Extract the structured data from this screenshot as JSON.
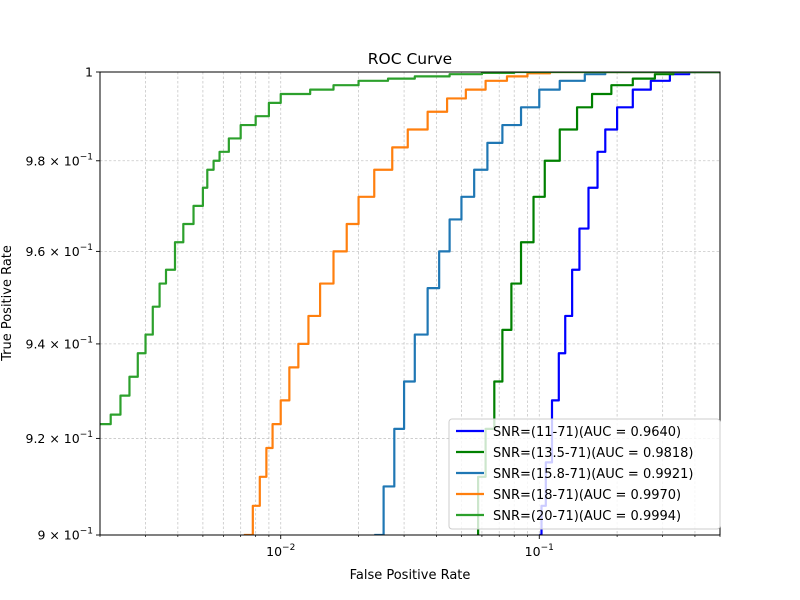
{
  "chart_data": {
    "type": "line",
    "title": "ROC Curve",
    "xlabel": "False Positive Rate",
    "ylabel": "True Positive Rate",
    "xscale": "log",
    "yscale": "log",
    "xlim": [
      0.002,
      0.5
    ],
    "ylim": [
      0.9,
      1.0
    ],
    "grid": true,
    "legend_position": "bottom-right",
    "x_ticks": [
      {
        "value": 0.01,
        "base": "10",
        "exp": "−2"
      },
      {
        "value": 0.1,
        "base": "10",
        "exp": "−1"
      }
    ],
    "y_ticks": [
      {
        "value": 0.9,
        "text": "9 × 10",
        "exp": "−1"
      },
      {
        "value": 0.92,
        "text": "9.2 × 10",
        "exp": "−1"
      },
      {
        "value": 0.94,
        "text": "9.4 × 10",
        "exp": "−1"
      },
      {
        "value": 0.96,
        "text": "9.6 × 10",
        "exp": "−1"
      },
      {
        "value": 0.98,
        "text": "9.8 × 10",
        "exp": "−1"
      },
      {
        "value": 1.0,
        "text": "1",
        "exp": "0"
      }
    ],
    "series": [
      {
        "name": "SNR=(11-71)(AUC = 0.9640)",
        "color": "#0000ff",
        "points": [
          [
            0.1,
            0.9
          ],
          [
            0.102,
            0.906
          ],
          [
            0.106,
            0.915
          ],
          [
            0.112,
            0.928
          ],
          [
            0.119,
            0.938
          ],
          [
            0.126,
            0.946
          ],
          [
            0.134,
            0.956
          ],
          [
            0.143,
            0.965
          ],
          [
            0.155,
            0.974
          ],
          [
            0.168,
            0.982
          ],
          [
            0.18,
            0.987
          ],
          [
            0.2,
            0.992
          ],
          [
            0.23,
            0.996
          ],
          [
            0.27,
            0.998
          ],
          [
            0.32,
            0.9995
          ],
          [
            0.38,
            1.0
          ],
          [
            0.5,
            1.0
          ]
        ]
      },
      {
        "name": "SNR=(13.5-71)(AUC = 0.9818)",
        "color": "#008000",
        "points": [
          [
            0.052,
            0.895
          ],
          [
            0.058,
            0.912
          ],
          [
            0.062,
            0.922
          ],
          [
            0.067,
            0.932
          ],
          [
            0.072,
            0.943
          ],
          [
            0.078,
            0.953
          ],
          [
            0.085,
            0.962
          ],
          [
            0.095,
            0.972
          ],
          [
            0.105,
            0.98
          ],
          [
            0.12,
            0.987
          ],
          [
            0.14,
            0.992
          ],
          [
            0.16,
            0.995
          ],
          [
            0.19,
            0.997
          ],
          [
            0.23,
            0.9985
          ],
          [
            0.28,
            0.9995
          ],
          [
            0.33,
            1.0
          ],
          [
            0.5,
            1.0
          ]
        ]
      },
      {
        "name": "SNR=(15.8-71)(AUC = 0.9921)",
        "color": "#1f77b4",
        "points": [
          [
            0.023,
            0.9
          ],
          [
            0.025,
            0.91
          ],
          [
            0.0275,
            0.922
          ],
          [
            0.03,
            0.932
          ],
          [
            0.033,
            0.942
          ],
          [
            0.037,
            0.952
          ],
          [
            0.041,
            0.96
          ],
          [
            0.045,
            0.967
          ],
          [
            0.05,
            0.972
          ],
          [
            0.056,
            0.978
          ],
          [
            0.063,
            0.984
          ],
          [
            0.072,
            0.988
          ],
          [
            0.085,
            0.992
          ],
          [
            0.1,
            0.996
          ],
          [
            0.12,
            0.998
          ],
          [
            0.15,
            0.9995
          ],
          [
            0.18,
            1.0
          ],
          [
            0.5,
            1.0
          ]
        ]
      },
      {
        "name": "SNR=(18-71)(AUC = 0.9970)",
        "color": "#ff7f0e",
        "points": [
          [
            0.0072,
            0.9
          ],
          [
            0.0078,
            0.906
          ],
          [
            0.0083,
            0.912
          ],
          [
            0.0088,
            0.918
          ],
          [
            0.0093,
            0.923
          ],
          [
            0.01,
            0.928
          ],
          [
            0.0108,
            0.935
          ],
          [
            0.0117,
            0.94
          ],
          [
            0.0128,
            0.946
          ],
          [
            0.0142,
            0.953
          ],
          [
            0.016,
            0.96
          ],
          [
            0.018,
            0.966
          ],
          [
            0.02,
            0.972
          ],
          [
            0.023,
            0.978
          ],
          [
            0.027,
            0.983
          ],
          [
            0.031,
            0.987
          ],
          [
            0.037,
            0.991
          ],
          [
            0.044,
            0.994
          ],
          [
            0.052,
            0.996
          ],
          [
            0.062,
            0.998
          ],
          [
            0.075,
            0.999
          ],
          [
            0.09,
            0.9997
          ],
          [
            0.11,
            1.0
          ],
          [
            0.5,
            1.0
          ]
        ]
      },
      {
        "name": "SNR=(20-71)(AUC = 0.9994)",
        "color": "#2ca02c",
        "points": [
          [
            0.002,
            0.923
          ],
          [
            0.0022,
            0.925
          ],
          [
            0.0024,
            0.929
          ],
          [
            0.0026,
            0.933
          ],
          [
            0.0028,
            0.938
          ],
          [
            0.003,
            0.942
          ],
          [
            0.0032,
            0.948
          ],
          [
            0.0034,
            0.953
          ],
          [
            0.0036,
            0.956
          ],
          [
            0.0039,
            0.962
          ],
          [
            0.0042,
            0.966
          ],
          [
            0.0046,
            0.97
          ],
          [
            0.005,
            0.974
          ],
          [
            0.0052,
            0.978
          ],
          [
            0.0055,
            0.98
          ],
          [
            0.0058,
            0.982
          ],
          [
            0.0063,
            0.985
          ],
          [
            0.007,
            0.988
          ],
          [
            0.008,
            0.99
          ],
          [
            0.009,
            0.993
          ],
          [
            0.01,
            0.995
          ],
          [
            0.013,
            0.996
          ],
          [
            0.016,
            0.997
          ],
          [
            0.02,
            0.998
          ],
          [
            0.026,
            0.9985
          ],
          [
            0.033,
            0.999
          ],
          [
            0.045,
            0.9995
          ],
          [
            0.06,
            0.9998
          ],
          [
            0.08,
            1.0
          ],
          [
            0.5,
            1.0
          ]
        ]
      }
    ]
  }
}
